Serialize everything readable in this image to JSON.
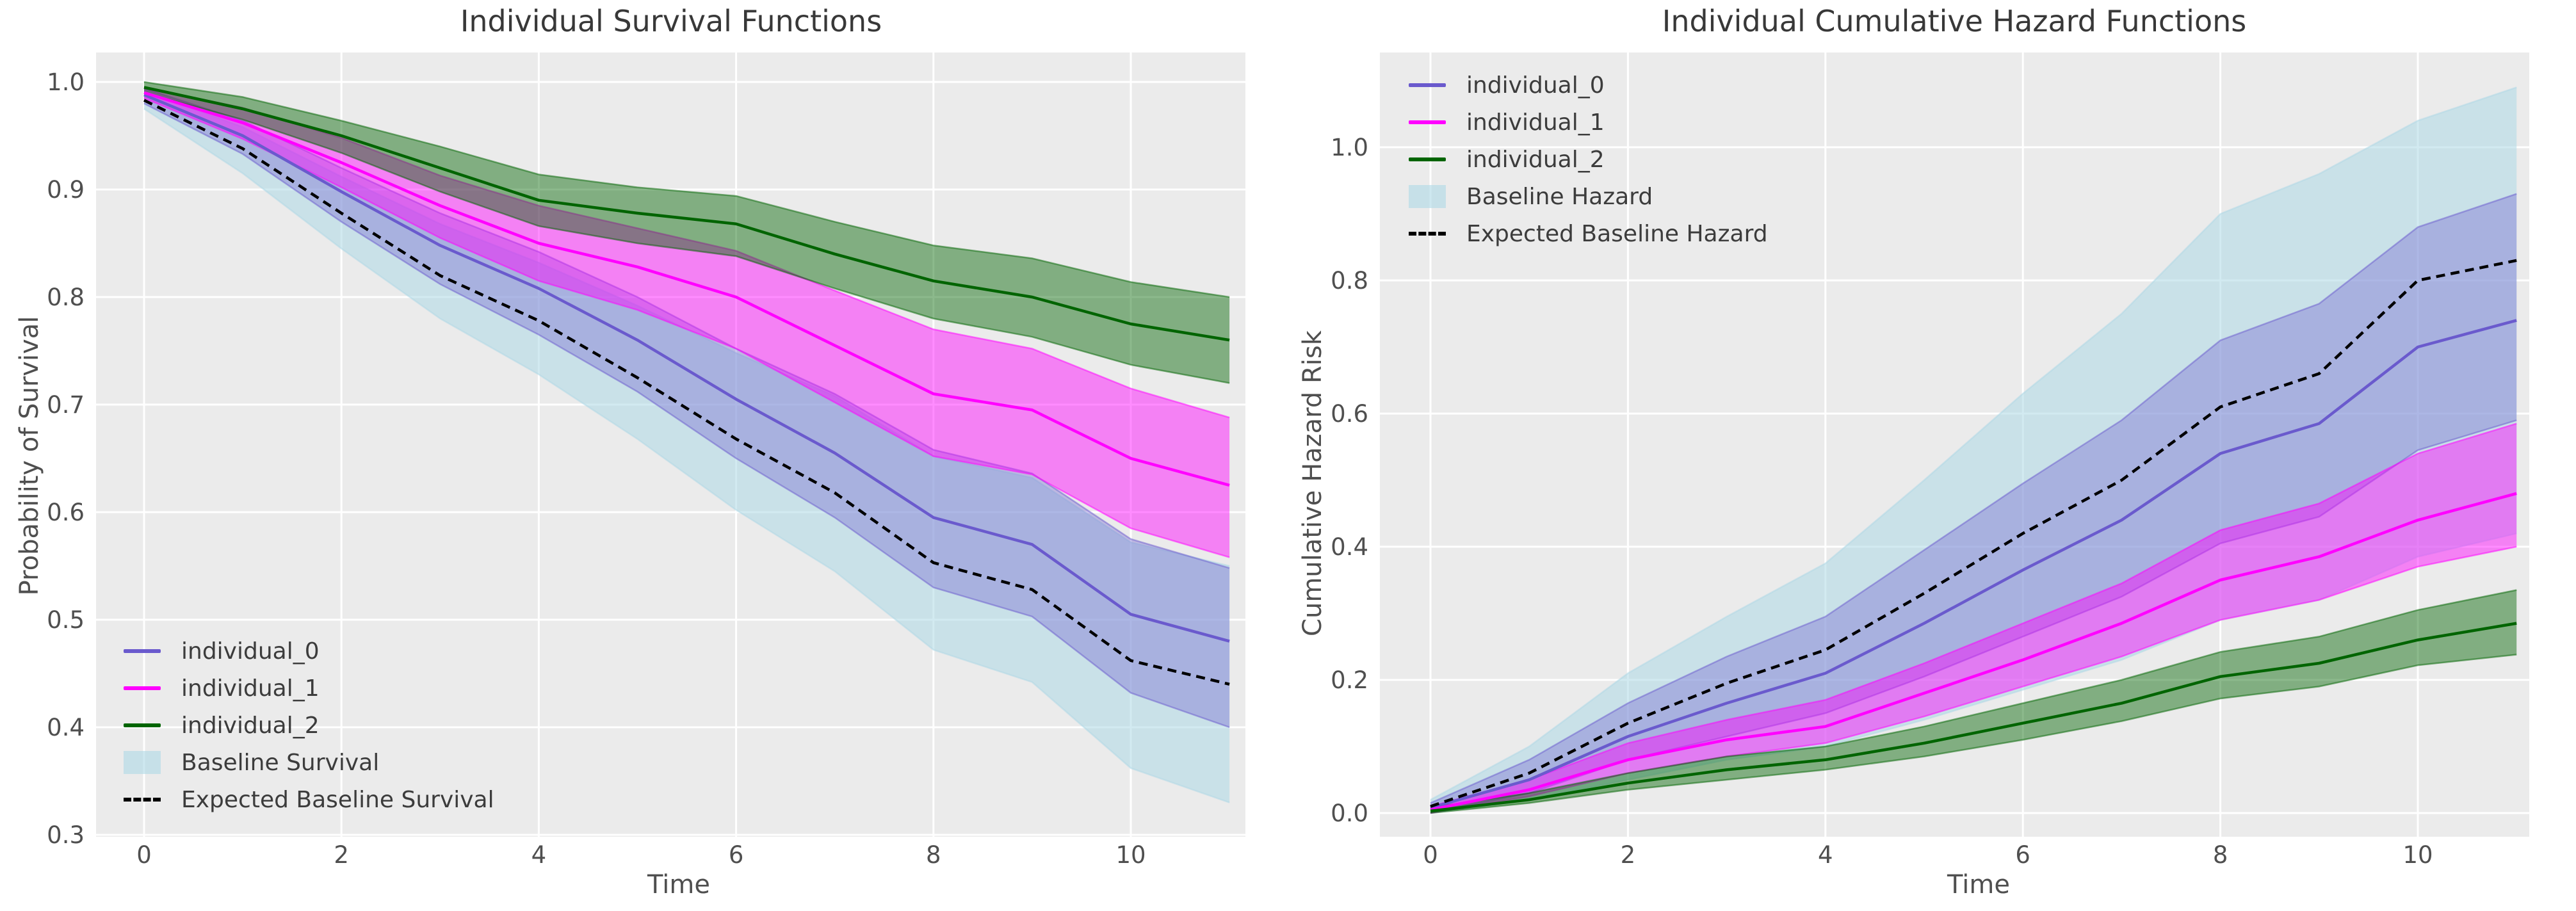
{
  "figure": {
    "background": "#ffffff",
    "axes_background": "#ebebeb",
    "grid_color": "#ffffff",
    "tick_color": "#4f4f4f",
    "title_color": "#383838"
  },
  "chart_data": [
    {
      "type": "line",
      "title": "Individual Survival Functions",
      "xlabel": "Time",
      "ylabel": "Probability of Survival",
      "xlim": [
        -0.5,
        11.16
      ],
      "ylim": [
        0.295,
        1.032
      ],
      "grid": true,
      "legend_position": "lower left",
      "x": [
        0,
        1,
        2,
        3,
        4,
        5,
        6,
        7,
        8,
        9,
        10,
        11
      ],
      "xticks": [
        0,
        2,
        4,
        6,
        8,
        10
      ],
      "xtick_labels": [
        "0",
        "2",
        "4",
        "6",
        "8",
        "10"
      ],
      "yticks": [
        0.3,
        0.4,
        0.5,
        0.6,
        0.7,
        0.8,
        0.9,
        1.0
      ],
      "ytick_labels": [
        "0.3",
        "0.4",
        "0.5",
        "0.6",
        "0.7",
        "0.8",
        "0.9",
        "1.0"
      ],
      "series": [
        {
          "name": "Baseline Survival",
          "kind": "band",
          "color": "#add8e6",
          "band_alpha": 0.55,
          "band_lower": [
            0.975,
            0.915,
            0.845,
            0.78,
            0.728,
            0.668,
            0.602,
            0.545,
            0.472,
            0.442,
            0.362,
            0.33
          ],
          "band_upper": [
            0.992,
            0.958,
            0.912,
            0.868,
            0.832,
            0.792,
            0.748,
            0.708,
            0.652,
            0.632,
            0.572,
            0.55
          ]
        },
        {
          "name": "individual_0",
          "kind": "line-band",
          "color": "#6a5acd",
          "style": "solid",
          "band_alpha": 0.35,
          "values": [
            0.988,
            0.95,
            0.898,
            0.848,
            0.808,
            0.76,
            0.705,
            0.655,
            0.595,
            0.57,
            0.505,
            0.48
          ],
          "band_lower": [
            0.98,
            0.933,
            0.87,
            0.812,
            0.765,
            0.712,
            0.65,
            0.595,
            0.53,
            0.503,
            0.432,
            0.4
          ],
          "band_upper": [
            0.994,
            0.964,
            0.92,
            0.878,
            0.842,
            0.8,
            0.752,
            0.71,
            0.658,
            0.636,
            0.575,
            0.548
          ]
        },
        {
          "name": "individual_1",
          "kind": "line-band",
          "color": "#ff00ff",
          "style": "solid",
          "band_alpha": 0.45,
          "values": [
            0.99,
            0.962,
            0.925,
            0.885,
            0.85,
            0.828,
            0.8,
            0.755,
            0.71,
            0.695,
            0.65,
            0.625
          ],
          "band_lower": [
            0.985,
            0.947,
            0.902,
            0.855,
            0.815,
            0.788,
            0.752,
            0.702,
            0.652,
            0.635,
            0.585,
            0.558
          ],
          "band_upper": [
            0.995,
            0.976,
            0.948,
            0.913,
            0.885,
            0.864,
            0.843,
            0.806,
            0.77,
            0.752,
            0.715,
            0.688
          ]
        },
        {
          "name": "individual_2",
          "kind": "line-band",
          "color": "#006400",
          "style": "solid",
          "band_alpha": 0.45,
          "values": [
            0.995,
            0.975,
            0.95,
            0.92,
            0.89,
            0.878,
            0.868,
            0.84,
            0.815,
            0.8,
            0.775,
            0.76
          ],
          "band_lower": [
            0.99,
            0.965,
            0.934,
            0.898,
            0.866,
            0.85,
            0.838,
            0.808,
            0.78,
            0.763,
            0.737,
            0.72
          ],
          "band_upper": [
            1.0,
            0.986,
            0.964,
            0.94,
            0.914,
            0.902,
            0.894,
            0.87,
            0.848,
            0.836,
            0.814,
            0.8
          ]
        },
        {
          "name": "Expected Baseline Survival",
          "kind": "line",
          "color": "#000000",
          "style": "dashed",
          "values": [
            0.983,
            0.938,
            0.878,
            0.82,
            0.778,
            0.725,
            0.668,
            0.618,
            0.553,
            0.528,
            0.462,
            0.44
          ]
        }
      ],
      "legend": [
        {
          "label": "individual_0",
          "type": "line",
          "color": "#6a5acd"
        },
        {
          "label": "individual_1",
          "type": "line",
          "color": "#ff00ff"
        },
        {
          "label": "individual_2",
          "type": "line",
          "color": "#006400"
        },
        {
          "label": "Baseline Survival",
          "type": "patch",
          "color": "#add8e6"
        },
        {
          "label": "Expected Baseline Survival",
          "type": "dashed-line",
          "color": "#000000"
        }
      ]
    },
    {
      "type": "line",
      "title": "Individual Cumulative Hazard Functions",
      "xlabel": "Time",
      "ylabel": "Cumulative Hazard Risk",
      "xlim": [
        -0.5,
        11.16
      ],
      "ylim": [
        -0.036,
        1.142
      ],
      "grid": true,
      "legend_position": "upper left",
      "x": [
        0,
        1,
        2,
        3,
        4,
        5,
        6,
        7,
        8,
        9,
        10,
        11
      ],
      "xticks": [
        0,
        2,
        4,
        6,
        8,
        10
      ],
      "xtick_labels": [
        "0",
        "2",
        "4",
        "6",
        "8",
        "10"
      ],
      "yticks": [
        0.0,
        0.2,
        0.4,
        0.6,
        0.8,
        1.0
      ],
      "ytick_labels": [
        "0.0",
        "0.2",
        "0.4",
        "0.6",
        "0.8",
        "1.0"
      ],
      "series": [
        {
          "name": "Baseline Hazard",
          "kind": "band",
          "color": "#add8e6",
          "band_alpha": 0.55,
          "band_lower": [
            0.0,
            0.02,
            0.05,
            0.08,
            0.1,
            0.14,
            0.185,
            0.23,
            0.29,
            0.32,
            0.385,
            0.42
          ],
          "band_upper": [
            0.02,
            0.1,
            0.21,
            0.295,
            0.375,
            0.5,
            0.63,
            0.75,
            0.9,
            0.96,
            1.04,
            1.09
          ]
        },
        {
          "name": "individual_0",
          "kind": "line-band",
          "color": "#6a5acd",
          "style": "solid",
          "band_alpha": 0.35,
          "values": [
            0.008,
            0.05,
            0.115,
            0.165,
            0.21,
            0.285,
            0.365,
            0.44,
            0.54,
            0.585,
            0.7,
            0.74
          ],
          "band_lower": [
            0.0,
            0.03,
            0.08,
            0.115,
            0.15,
            0.205,
            0.265,
            0.325,
            0.405,
            0.445,
            0.545,
            0.59
          ],
          "band_upper": [
            0.015,
            0.08,
            0.165,
            0.235,
            0.295,
            0.395,
            0.495,
            0.59,
            0.71,
            0.765,
            0.88,
            0.93
          ]
        },
        {
          "name": "individual_1",
          "kind": "line-band",
          "color": "#ff00ff",
          "style": "solid",
          "band_alpha": 0.45,
          "values": [
            0.005,
            0.035,
            0.08,
            0.11,
            0.13,
            0.18,
            0.23,
            0.285,
            0.35,
            0.385,
            0.44,
            0.48
          ],
          "band_lower": [
            0.0,
            0.025,
            0.06,
            0.085,
            0.105,
            0.145,
            0.19,
            0.235,
            0.29,
            0.32,
            0.37,
            0.4
          ],
          "band_upper": [
            0.01,
            0.05,
            0.105,
            0.14,
            0.17,
            0.225,
            0.285,
            0.345,
            0.425,
            0.465,
            0.54,
            0.585
          ]
        },
        {
          "name": "individual_2",
          "kind": "line-band",
          "color": "#006400",
          "style": "solid",
          "band_alpha": 0.45,
          "values": [
            0.003,
            0.02,
            0.045,
            0.065,
            0.08,
            0.105,
            0.135,
            0.165,
            0.205,
            0.225,
            0.26,
            0.285
          ],
          "band_lower": [
            0.0,
            0.015,
            0.035,
            0.05,
            0.065,
            0.085,
            0.11,
            0.138,
            0.172,
            0.19,
            0.222,
            0.238
          ],
          "band_upper": [
            0.008,
            0.03,
            0.06,
            0.085,
            0.1,
            0.13,
            0.165,
            0.2,
            0.242,
            0.265,
            0.305,
            0.335
          ]
        },
        {
          "name": "Expected Baseline Hazard",
          "kind": "line",
          "color": "#000000",
          "style": "dashed",
          "values": [
            0.01,
            0.06,
            0.135,
            0.195,
            0.245,
            0.33,
            0.42,
            0.5,
            0.61,
            0.66,
            0.8,
            0.83
          ]
        }
      ],
      "legend": [
        {
          "label": "individual_0",
          "type": "line",
          "color": "#6a5acd"
        },
        {
          "label": "individual_1",
          "type": "line",
          "color": "#ff00ff"
        },
        {
          "label": "individual_2",
          "type": "line",
          "color": "#006400"
        },
        {
          "label": "Baseline Hazard",
          "type": "patch",
          "color": "#add8e6"
        },
        {
          "label": "Expected Baseline Hazard",
          "type": "dashed-line",
          "color": "#000000"
        }
      ]
    }
  ]
}
